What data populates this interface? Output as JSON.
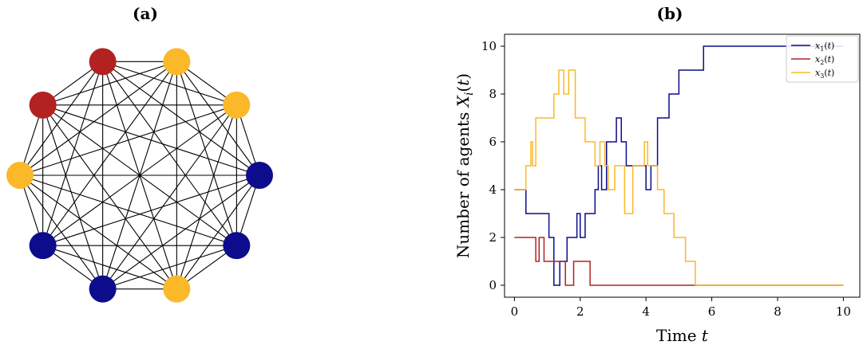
{
  "panels": {
    "a_label": "(a)",
    "b_label": "(b)"
  },
  "colors": {
    "x1": "#0c0c8c",
    "x2": "#b22222",
    "x3": "#fbb829",
    "edge": "#000000"
  },
  "network": {
    "node_count": 10,
    "complete_graph": true,
    "node_colors": [
      "red",
      "yellow",
      "yellow",
      "blue",
      "blue",
      "yellow",
      "blue",
      "blue",
      "yellow",
      "red"
    ]
  },
  "chart_data": {
    "type": "line",
    "step": true,
    "title": "",
    "xlabel": "Time t",
    "ylabel": "Number of agents X_i(t)",
    "xlim": [
      -0.3,
      10.5
    ],
    "ylim": [
      -0.5,
      10.5
    ],
    "xticks": [
      0,
      2,
      4,
      6,
      8,
      10
    ],
    "yticks": [
      0,
      2,
      4,
      6,
      8,
      10
    ],
    "legend_position": "top-right",
    "series": [
      {
        "name": "x1(t)",
        "label_main": "x",
        "label_sub": "1",
        "color_key": "x1",
        "x": [
          0,
          0.35,
          0.5,
          1.05,
          1.2,
          1.38,
          1.6,
          1.9,
          2.0,
          2.15,
          2.45,
          2.55,
          2.65,
          2.8,
          3.1,
          3.25,
          3.4,
          3.55,
          3.65,
          4.0,
          4.15,
          4.35,
          4.5,
          4.7,
          5.0,
          5.35,
          5.75,
          10.0
        ],
        "y": [
          4,
          3,
          3,
          2,
          0,
          1,
          2,
          3,
          2,
          3,
          4,
          5,
          4,
          6,
          7,
          6,
          5,
          5,
          5,
          4,
          5,
          7,
          7,
          8,
          9,
          9,
          10,
          10
        ]
      },
      {
        "name": "x2(t)",
        "label_main": "x",
        "label_sub": "2",
        "color_key": "x2",
        "x": [
          0,
          0.65,
          0.75,
          0.9,
          1.3,
          1.5,
          1.55,
          1.8,
          2.3,
          5.75,
          10.0
        ],
        "y": [
          2,
          1,
          2,
          1,
          1,
          1,
          0,
          1,
          0,
          0,
          0
        ]
      },
      {
        "name": "x3(t)",
        "label_main": "x",
        "label_sub": "3",
        "color_key": "x3",
        "x": [
          0,
          0.35,
          0.5,
          0.55,
          0.65,
          0.95,
          1.2,
          1.35,
          1.5,
          1.65,
          1.85,
          2.0,
          2.15,
          2.45,
          2.6,
          2.75,
          2.85,
          3.05,
          3.35,
          3.6,
          3.95,
          4.05,
          4.15,
          4.35,
          4.55,
          4.85,
          5.2,
          5.5,
          5.75,
          10.0
        ],
        "y": [
          4,
          5,
          6,
          5,
          7,
          7,
          8,
          9,
          8,
          9,
          7,
          7,
          6,
          5,
          6,
          5,
          4,
          5,
          3,
          5,
          6,
          5,
          5,
          4,
          3,
          2,
          1,
          0,
          0,
          0
        ]
      }
    ]
  }
}
